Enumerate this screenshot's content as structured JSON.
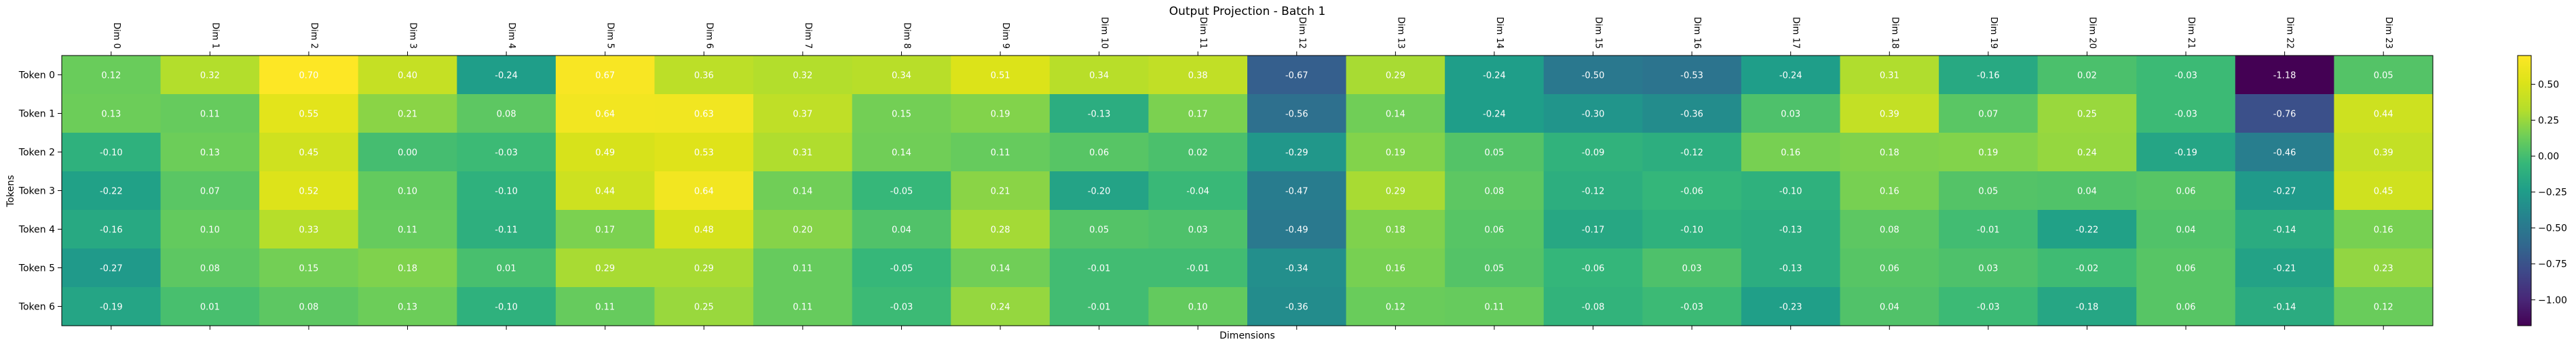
{
  "chart_data": {
    "type": "heatmap",
    "title": "Output Projection - Batch 1",
    "xlabel": "Dimensions",
    "ylabel": "Tokens",
    "x_labels": [
      "Dim 0",
      "Dim 1",
      "Dim 2",
      "Dim 3",
      "Dim 4",
      "Dim 5",
      "Dim 6",
      "Dim 7",
      "Dim 8",
      "Dim 9",
      "Dim 10",
      "Dim 11",
      "Dim 12",
      "Dim 13",
      "Dim 14",
      "Dim 15",
      "Dim 16",
      "Dim 17",
      "Dim 18",
      "Dim 19",
      "Dim 20",
      "Dim 21",
      "Dim 22",
      "Dim 23"
    ],
    "y_labels": [
      "Token 0",
      "Token 1",
      "Token 2",
      "Token 3",
      "Token 4",
      "Token 5",
      "Token 6"
    ],
    "values": [
      [
        0.12,
        0.32,
        0.7,
        0.4,
        -0.24,
        0.67,
        0.36,
        0.32,
        0.34,
        0.51,
        0.34,
        0.38,
        -0.67,
        0.29,
        -0.24,
        -0.5,
        -0.53,
        -0.24,
        0.31,
        -0.16,
        0.02,
        -0.03,
        -1.18,
        0.05
      ],
      [
        0.13,
        0.11,
        0.55,
        0.21,
        0.08,
        0.64,
        0.63,
        0.37,
        0.15,
        0.19,
        -0.13,
        0.17,
        -0.56,
        0.14,
        -0.24,
        -0.3,
        -0.36,
        0.03,
        0.39,
        0.07,
        0.25,
        -0.03,
        -0.76,
        0.44
      ],
      [
        -0.1,
        0.13,
        0.45,
        0.0,
        -0.03,
        0.49,
        0.53,
        0.31,
        0.14,
        0.11,
        0.06,
        0.02,
        -0.29,
        0.19,
        0.05,
        -0.09,
        -0.12,
        0.16,
        0.18,
        0.19,
        0.24,
        -0.19,
        -0.46,
        0.39
      ],
      [
        -0.22,
        0.07,
        0.52,
        0.1,
        -0.1,
        0.44,
        0.64,
        0.14,
        -0.05,
        0.21,
        -0.2,
        -0.04,
        -0.47,
        0.29,
        0.08,
        -0.12,
        -0.06,
        -0.1,
        0.16,
        0.05,
        0.04,
        0.06,
        -0.27,
        0.45
      ],
      [
        -0.16,
        0.1,
        0.33,
        0.11,
        -0.11,
        0.17,
        0.48,
        0.2,
        0.04,
        0.28,
        0.05,
        0.03,
        -0.49,
        0.18,
        0.06,
        -0.17,
        -0.1,
        -0.13,
        0.08,
        -0.01,
        -0.22,
        0.04,
        -0.14,
        0.16
      ],
      [
        -0.27,
        0.08,
        0.15,
        0.18,
        0.01,
        0.29,
        0.29,
        0.11,
        -0.05,
        0.14,
        -0.01,
        -0.01,
        -0.34,
        0.16,
        0.05,
        -0.06,
        0.03,
        -0.13,
        0.06,
        0.03,
        -0.02,
        0.06,
        -0.21,
        0.23
      ],
      [
        -0.19,
        0.01,
        0.08,
        0.13,
        -0.1,
        0.11,
        0.25,
        0.11,
        -0.03,
        0.24,
        -0.01,
        0.1,
        -0.36,
        0.12,
        0.11,
        -0.08,
        -0.03,
        -0.23,
        0.04,
        -0.03,
        -0.18,
        0.06,
        -0.14,
        0.12
      ]
    ],
    "vmin": -1.18,
    "vmax": 0.7,
    "colormap": "viridis",
    "colorbar_ticks": [
      "0.50",
      "0.25",
      "0.00",
      "−0.25",
      "−0.50",
      "−0.75",
      "−1.00"
    ],
    "colorbar_tick_values": [
      0.5,
      0.25,
      0.0,
      -0.25,
      -0.5,
      -0.75,
      -1.0
    ]
  }
}
